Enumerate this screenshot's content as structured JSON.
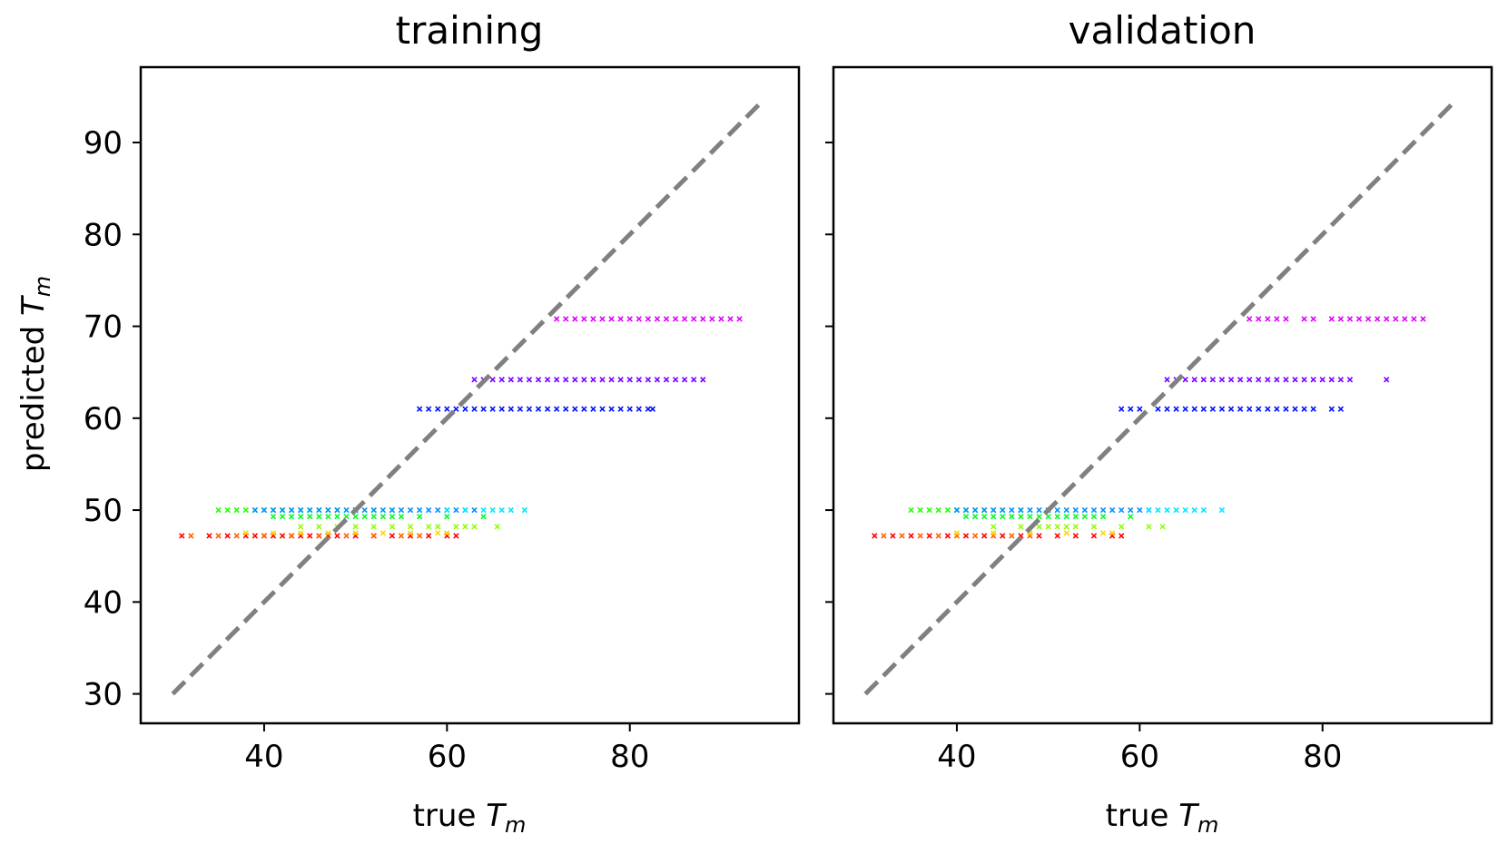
{
  "figure": {
    "ylabel_main": "predicted ",
    "ylabel_sub": "T",
    "ylabel_subscript": "m"
  },
  "chart_data": [
    {
      "type": "scatter",
      "title": "training",
      "xlabel_prefix": "true ",
      "xlabel_var": "T",
      "xlabel_sub": "m",
      "ylabel": "predicted Tm",
      "xlim": [
        26.5,
        98.5
      ],
      "ylim": [
        26.8,
        98.2
      ],
      "xticks": [
        40,
        60,
        80
      ],
      "yticks": [
        30,
        40,
        50,
        60,
        70,
        80,
        90
      ],
      "grid": false,
      "legend": "none",
      "reference_line": {
        "x": [
          30,
          94.5
        ],
        "y": [
          30,
          94.5
        ],
        "color": "#808080",
        "style": "dashed"
      },
      "series": [
        {
          "color": "#ff0000",
          "y": 47.2,
          "x": [
            31,
            34,
            36,
            38,
            39,
            40,
            41,
            42,
            43,
            44,
            45,
            46,
            47,
            48,
            50,
            52,
            54,
            56,
            58,
            60,
            61
          ]
        },
        {
          "color": "#ff6000",
          "y": 47.2,
          "x": [
            32,
            35,
            37,
            40,
            43,
            46,
            49,
            52,
            55,
            57
          ]
        },
        {
          "color": "#ffd500",
          "y": 47.5,
          "x": [
            38,
            41,
            44,
            47,
            50,
            53,
            56,
            59,
            60
          ]
        },
        {
          "color": "#90ff00",
          "y": 48.2,
          "x": [
            44,
            46,
            48,
            50,
            52,
            54,
            56,
            58,
            59,
            61,
            62,
            63,
            65.5
          ]
        },
        {
          "color": "#00ff22",
          "y": 49.3,
          "x": [
            41,
            42,
            43,
            44,
            45,
            46,
            47,
            48,
            49,
            50,
            51,
            52,
            53,
            54,
            55,
            57,
            60,
            64
          ]
        },
        {
          "color": "#22ff00",
          "y": 50.0,
          "x": [
            35,
            36,
            37,
            38,
            39,
            40,
            41,
            42,
            43,
            44,
            45,
            46,
            47,
            48,
            50,
            52,
            54
          ]
        },
        {
          "color": "#0090ff",
          "y": 50.0,
          "x": [
            39,
            40,
            41,
            42,
            43,
            44,
            45,
            46,
            47,
            48,
            49,
            50,
            51,
            52,
            53,
            54,
            55,
            56,
            57,
            58,
            59,
            60,
            61,
            62,
            63
          ]
        },
        {
          "color": "#00e6ff",
          "y": 50.0,
          "x": [
            60,
            62,
            64,
            65,
            66,
            67,
            68.5
          ]
        },
        {
          "color": "#0010ff",
          "y": 61.0,
          "x": [
            57,
            58,
            59,
            60,
            61,
            62,
            63,
            64,
            65,
            66,
            67,
            68,
            69,
            70,
            71,
            72,
            73,
            74,
            75,
            76,
            77,
            78,
            79,
            80,
            81,
            82,
            82.5
          ]
        },
        {
          "color": "#7a00ff",
          "y": 64.2,
          "x": [
            63,
            64,
            65,
            66,
            67,
            68,
            69,
            70,
            71,
            72,
            73,
            74,
            75,
            76,
            77,
            78,
            79,
            80,
            81,
            82,
            83,
            84,
            85,
            86,
            87,
            88
          ]
        },
        {
          "color": "#e000ff",
          "y": 70.8,
          "x": [
            72,
            73,
            74,
            75,
            76,
            77,
            78,
            79,
            80,
            81,
            82,
            83,
            84,
            85,
            86,
            87,
            88,
            89,
            90,
            91,
            92
          ]
        }
      ]
    },
    {
      "type": "scatter",
      "title": "validation",
      "xlabel_prefix": "true ",
      "xlabel_var": "T",
      "xlabel_sub": "m",
      "xlim": [
        26.5,
        98.5
      ],
      "ylim": [
        26.8,
        98.2
      ],
      "xticks": [
        40,
        60,
        80
      ],
      "yticks": [
        30,
        40,
        50,
        60,
        70,
        80,
        90
      ],
      "grid": false,
      "legend": "none",
      "reference_line": {
        "x": [
          30,
          94.5
        ],
        "y": [
          30,
          94.5
        ],
        "color": "#808080",
        "style": "dashed"
      },
      "series": [
        {
          "color": "#ff0000",
          "y": 47.2,
          "x": [
            31,
            33,
            35,
            37,
            39,
            41,
            43,
            45,
            47,
            49,
            51,
            53,
            55,
            57,
            58
          ]
        },
        {
          "color": "#ff6000",
          "y": 47.2,
          "x": [
            32,
            34,
            36,
            38,
            40,
            42,
            44,
            46,
            48
          ]
        },
        {
          "color": "#ffd500",
          "y": 47.5,
          "x": [
            40,
            44,
            48,
            52,
            56,
            57
          ]
        },
        {
          "color": "#90ff00",
          "y": 48.2,
          "x": [
            44,
            47,
            49,
            50,
            51,
            52,
            53,
            55,
            58,
            61,
            62.5
          ]
        },
        {
          "color": "#00ff22",
          "y": 49.3,
          "x": [
            41,
            42,
            43,
            44,
            45,
            46,
            47,
            48,
            49,
            50,
            51,
            52,
            53,
            54,
            55,
            56,
            59
          ]
        },
        {
          "color": "#22ff00",
          "y": 50.0,
          "x": [
            35,
            36,
            37,
            38,
            39,
            40,
            41,
            42,
            43,
            44,
            45,
            47
          ]
        },
        {
          "color": "#0090ff",
          "y": 50.0,
          "x": [
            40,
            41,
            42,
            43,
            44,
            45,
            46,
            47,
            48,
            49,
            50,
            51,
            52,
            53,
            54,
            55,
            56,
            57,
            58,
            59,
            60,
            61
          ]
        },
        {
          "color": "#00e6ff",
          "y": 50.0,
          "x": [
            61,
            62,
            63,
            64,
            65,
            66,
            67,
            69
          ]
        },
        {
          "color": "#0010ff",
          "y": 61.0,
          "x": [
            58,
            59,
            60,
            62,
            63,
            64,
            65,
            66,
            67,
            68,
            69,
            70,
            71,
            72,
            73,
            74,
            75,
            76,
            77,
            78,
            79,
            81,
            82
          ]
        },
        {
          "color": "#7a00ff",
          "y": 64.2,
          "x": [
            63,
            64,
            65,
            66,
            67,
            68,
            69,
            70,
            71,
            72,
            73,
            74,
            75,
            76,
            77,
            78,
            79,
            80,
            81,
            82,
            83,
            87
          ]
        },
        {
          "color": "#e000ff",
          "y": 70.8,
          "x": [
            72,
            73,
            74,
            75,
            76,
            78,
            79,
            81,
            82,
            83,
            84,
            85,
            86,
            87,
            88,
            89,
            90,
            91
          ]
        }
      ]
    }
  ]
}
